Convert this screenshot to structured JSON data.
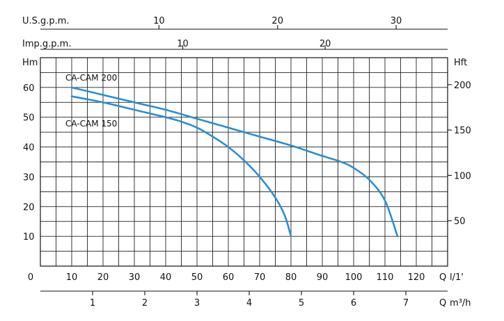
{
  "chart_data": {
    "type": "line",
    "title": "",
    "colors": {
      "curve": "#2a8fd0",
      "grid": "#222222"
    },
    "grid": true,
    "axes": {
      "x_lpm": {
        "label": "Q l/1'",
        "q": "Q",
        "unit": "l/1'",
        "range": [
          0,
          130
        ],
        "ticks": [
          0,
          10,
          20,
          30,
          40,
          50,
          60,
          70,
          80,
          90,
          100,
          110,
          120
        ]
      },
      "x_m3h": {
        "label": "Q m³/h",
        "q": "Q",
        "unit": "m³/h",
        "range": [
          0,
          7.8
        ],
        "ticks": [
          1,
          2,
          3,
          4,
          5,
          6,
          7
        ]
      },
      "x_usgpm": {
        "label": "U.S.g.p.m.",
        "range": [
          0,
          34.34
        ],
        "ticks": [
          10,
          20,
          30
        ]
      },
      "x_impgpm": {
        "label": "Imp.g.p.m.",
        "range": [
          0,
          28.6
        ],
        "ticks": [
          10,
          20
        ]
      },
      "y_m": {
        "label": "Hm",
        "range": [
          0,
          70
        ],
        "ticks": [
          10,
          20,
          30,
          40,
          50,
          60
        ]
      },
      "y_ft": {
        "label": "Hft",
        "range": [
          0,
          229.7
        ],
        "ticks": [
          50,
          100,
          150,
          200
        ]
      }
    },
    "series": [
      {
        "name": "CA-CAM 200",
        "x": [
          10,
          20,
          30,
          40,
          50,
          60,
          70,
          80,
          90,
          96,
          100,
          105,
          110,
          114
        ],
        "y": [
          60,
          57.5,
          55,
          52.5,
          49.5,
          46.5,
          43.5,
          40.5,
          37,
          35,
          33,
          29,
          22,
          10
        ]
      },
      {
        "name": "CA-CAM 150",
        "x": [
          10,
          20,
          30,
          40,
          45,
          50,
          55,
          60,
          65,
          70,
          75,
          78,
          80
        ],
        "y": [
          57,
          55,
          52.5,
          50,
          48.5,
          46.5,
          43.5,
          40,
          35.5,
          30,
          23,
          17,
          10
        ]
      }
    ]
  }
}
